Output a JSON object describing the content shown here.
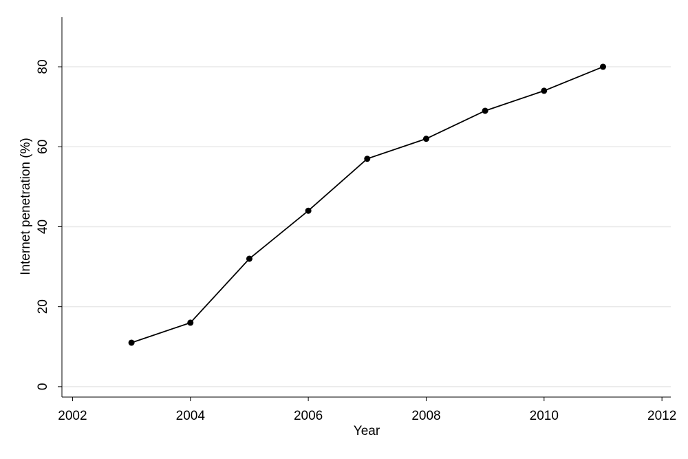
{
  "chart_data": {
    "type": "line",
    "x": [
      2003,
      2004,
      2005,
      2006,
      2007,
      2008,
      2009,
      2010,
      2011
    ],
    "series": [
      {
        "name": "Internet penetration",
        "color": "#000000",
        "values": [
          11,
          16,
          32,
          44,
          57,
          62,
          69,
          74,
          80
        ]
      }
    ],
    "xlabel": "Year",
    "ylabel": "Internet penetration (%)",
    "xlim": [
      2001.82,
      2012.15
    ],
    "xticks": [
      2002,
      2004,
      2006,
      2008,
      2010,
      2012
    ],
    "ylim": [
      -2.6,
      92.4
    ],
    "yticks": [
      0,
      20,
      40,
      60,
      80
    ],
    "grid": true
  }
}
